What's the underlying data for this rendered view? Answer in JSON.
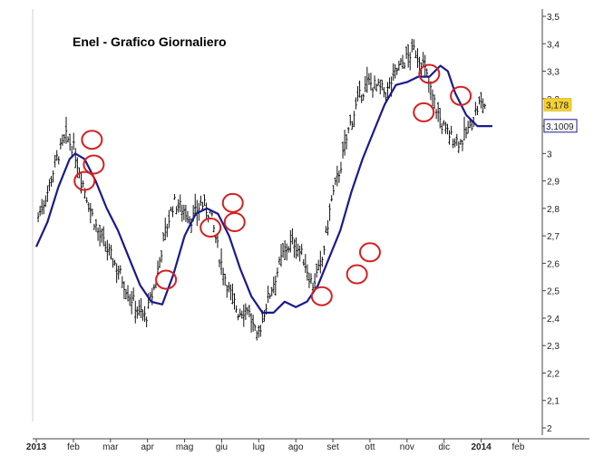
{
  "chart_data": {
    "type": "line",
    "title": "Enel - Grafico Giornaliero",
    "xlabel": "",
    "ylabel": "",
    "ylim": [
      2.0,
      3.5
    ],
    "y_ticks": [
      "3,5",
      "3,4",
      "3,3",
      "3,2",
      "3,1",
      "3",
      "2,9",
      "2,8",
      "2,7",
      "2,6",
      "2,5",
      "2,4",
      "2,3",
      "2,2",
      "2,1",
      "2"
    ],
    "y_tick_values": [
      3.5,
      3.4,
      3.3,
      3.2,
      3.1,
      3.0,
      2.9,
      2.8,
      2.7,
      2.6,
      2.5,
      2.4,
      2.3,
      2.2,
      2.1,
      2.0
    ],
    "x_ticks": [
      "2013",
      "feb",
      "mar",
      "apr",
      "mag",
      "giu",
      "lug",
      "ago",
      "set",
      "ott",
      "nov",
      "dic",
      "2014",
      "feb"
    ],
    "x_tick_bold": [
      true,
      false,
      false,
      false,
      false,
      false,
      false,
      false,
      false,
      false,
      false,
      false,
      true,
      false
    ],
    "x_tick_months": [
      0,
      1,
      2,
      3,
      4,
      5,
      6,
      7,
      8,
      9,
      10,
      11,
      12,
      13
    ],
    "last_price": {
      "label": "3,178",
      "value": 3.178,
      "color": "#f5d033"
    },
    "ma_last": {
      "label": "3,1009",
      "value": 3.1009,
      "color": "#1a1a8c"
    },
    "series": [
      {
        "style": "ohlc-bars",
        "color": "#111111",
        "x": [
          0.05,
          0.3,
          0.55,
          0.8,
          1.0,
          1.2,
          1.45,
          1.7,
          1.95,
          2.2,
          2.45,
          2.7,
          2.95,
          3.2,
          3.45,
          3.7,
          3.95,
          4.2,
          4.45,
          4.7,
          4.95,
          5.2,
          5.45,
          5.7,
          5.95,
          6.2,
          6.45,
          6.7,
          6.95,
          7.2,
          7.45,
          7.7,
          7.95,
          8.2,
          8.45,
          8.7,
          8.95,
          9.2,
          9.45,
          9.7,
          9.95,
          10.2,
          10.45,
          10.7,
          10.95,
          11.2,
          11.45,
          11.7,
          11.95,
          12.1
        ],
        "values": [
          2.77,
          2.86,
          2.98,
          3.06,
          3.02,
          2.92,
          2.8,
          2.7,
          2.64,
          2.58,
          2.5,
          2.44,
          2.4,
          2.52,
          2.7,
          2.82,
          2.8,
          2.76,
          2.82,
          2.78,
          2.62,
          2.5,
          2.42,
          2.44,
          2.32,
          2.45,
          2.55,
          2.65,
          2.68,
          2.62,
          2.52,
          2.6,
          2.82,
          2.95,
          3.1,
          3.2,
          3.26,
          3.24,
          3.22,
          3.3,
          3.34,
          3.38,
          3.32,
          3.2,
          3.1,
          3.06,
          3.04,
          3.1,
          3.18,
          3.178
        ]
      },
      {
        "style": "moving-average",
        "color": "#1a1a8c",
        "x": [
          0.0,
          0.3,
          0.6,
          0.9,
          1.05,
          1.3,
          1.6,
          1.9,
          2.2,
          2.5,
          2.8,
          3.1,
          3.4,
          3.7,
          4.0,
          4.3,
          4.6,
          4.9,
          5.2,
          5.5,
          5.8,
          6.1,
          6.4,
          6.7,
          7.0,
          7.3,
          7.6,
          7.9,
          8.2,
          8.5,
          8.8,
          9.1,
          9.4,
          9.7,
          10.0,
          10.3,
          10.6,
          10.9,
          11.1,
          11.3,
          11.6,
          11.9,
          12.1,
          12.3
        ],
        "values": [
          2.66,
          2.75,
          2.88,
          2.98,
          3.0,
          2.98,
          2.9,
          2.8,
          2.72,
          2.62,
          2.52,
          2.46,
          2.45,
          2.56,
          2.7,
          2.78,
          2.8,
          2.78,
          2.7,
          2.58,
          2.48,
          2.42,
          2.42,
          2.46,
          2.44,
          2.46,
          2.52,
          2.62,
          2.72,
          2.86,
          2.98,
          3.08,
          3.18,
          3.25,
          3.26,
          3.28,
          3.28,
          3.32,
          3.3,
          3.22,
          3.14,
          3.1,
          3.1,
          3.1
        ]
      }
    ],
    "annotations": {
      "style": "red-circle",
      "color": "#d42020",
      "points": [
        {
          "x": 1.5,
          "y": 3.05
        },
        {
          "x": 1.55,
          "y": 2.96
        },
        {
          "x": 1.3,
          "y": 2.9
        },
        {
          "x": 3.5,
          "y": 2.54
        },
        {
          "x": 4.7,
          "y": 2.73
        },
        {
          "x": 5.3,
          "y": 2.82
        },
        {
          "x": 5.35,
          "y": 2.75
        },
        {
          "x": 7.7,
          "y": 2.48
        },
        {
          "x": 8.65,
          "y": 2.56
        },
        {
          "x": 9.0,
          "y": 2.64
        },
        {
          "x": 10.6,
          "y": 3.29
        },
        {
          "x": 10.45,
          "y": 3.15
        },
        {
          "x": 11.45,
          "y": 3.21
        }
      ]
    }
  }
}
